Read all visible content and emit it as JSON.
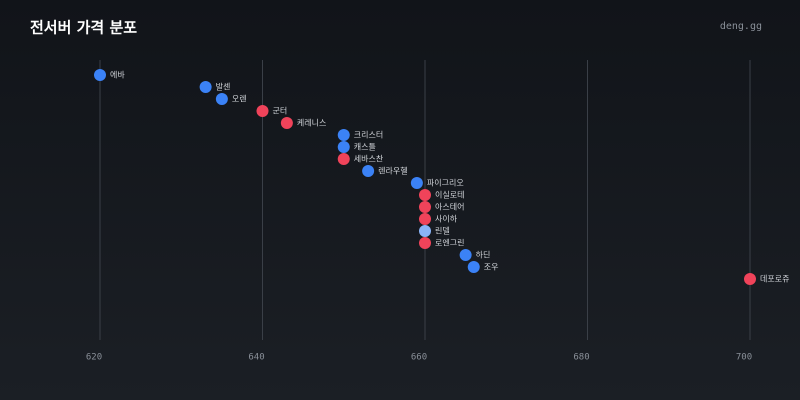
{
  "chart_data": {
    "type": "dot",
    "title": "전서버 가격 분포",
    "source": "deng.gg",
    "categories": [
      "에바",
      "발센",
      "오렌",
      "군터",
      "케레니스",
      "크리스터",
      "캐스틀",
      "세바스찬",
      "렌라우헬",
      "파이그리오",
      "이실로테",
      "아스테어",
      "사이하",
      "린델",
      "로엔그린",
      "하딘",
      "조우",
      "데포로쥬"
    ],
    "values": [
      620,
      633,
      635,
      640,
      643,
      650,
      650,
      650,
      653,
      659,
      660,
      660,
      660,
      660,
      660,
      665,
      666,
      700
    ],
    "colors": [
      "#3b82f6",
      "#3b82f6",
      "#3b82f6",
      "#f0435a",
      "#f0435a",
      "#3b82f6",
      "#3b82f6",
      "#f0435a",
      "#3b82f6",
      "#3b82f6",
      "#f0435a",
      "#f0435a",
      "#f0435a",
      "#8ab4f8",
      "#f0435a",
      "#3b82f6",
      "#3b82f6",
      "#f0435a"
    ],
    "xlim": [
      620,
      700
    ],
    "xticks": [
      620,
      640,
      660,
      680,
      700
    ],
    "grid": true
  }
}
